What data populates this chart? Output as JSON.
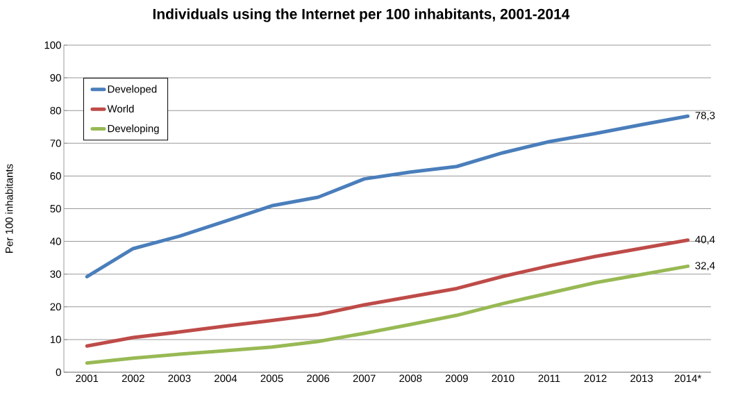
{
  "chart_data": {
    "type": "line",
    "title": "Individuals using the Internet per 100 inhabitants, 2001-2014",
    "ylabel": "Per 100 inhabitants",
    "categories": [
      "2001",
      "2002",
      "2003",
      "2004",
      "2005",
      "2006",
      "2007",
      "2008",
      "2009",
      "2010",
      "2011",
      "2012",
      "2013",
      "2014*"
    ],
    "series": [
      {
        "name": "Developed",
        "color": "#4a7ebb",
        "values": [
          29.2,
          37.8,
          41.6,
          46.2,
          50.9,
          53.5,
          59.1,
          61.2,
          62.9,
          67.1,
          70.5,
          73.0,
          75.7,
          78.3
        ],
        "value_labels": [
          null,
          null,
          null,
          null,
          null,
          null,
          null,
          null,
          null,
          null,
          null,
          null,
          null,
          "78,3"
        ]
      },
      {
        "name": "World",
        "color": "#be4b48",
        "values": [
          8.0,
          10.6,
          12.3,
          14.1,
          15.8,
          17.6,
          20.6,
          23.1,
          25.6,
          29.3,
          32.5,
          35.4,
          37.9,
          40.4
        ],
        "value_labels": [
          null,
          null,
          null,
          null,
          null,
          null,
          null,
          null,
          null,
          null,
          null,
          null,
          null,
          "40,4"
        ]
      },
      {
        "name": "Developing",
        "color": "#98b954",
        "values": [
          2.8,
          4.3,
          5.5,
          6.6,
          7.7,
          9.4,
          11.9,
          14.6,
          17.4,
          21.0,
          24.2,
          27.4,
          29.9,
          32.4
        ],
        "value_labels": [
          null,
          null,
          null,
          null,
          null,
          null,
          null,
          null,
          null,
          null,
          null,
          null,
          null,
          "32,4"
        ]
      }
    ],
    "ylim": [
      0,
      100
    ],
    "yticks": [
      0,
      10,
      20,
      30,
      40,
      50,
      60,
      70,
      80,
      90,
      100
    ],
    "grid": "y",
    "legend": "top left",
    "marker": "none",
    "line_style": "solid"
  }
}
